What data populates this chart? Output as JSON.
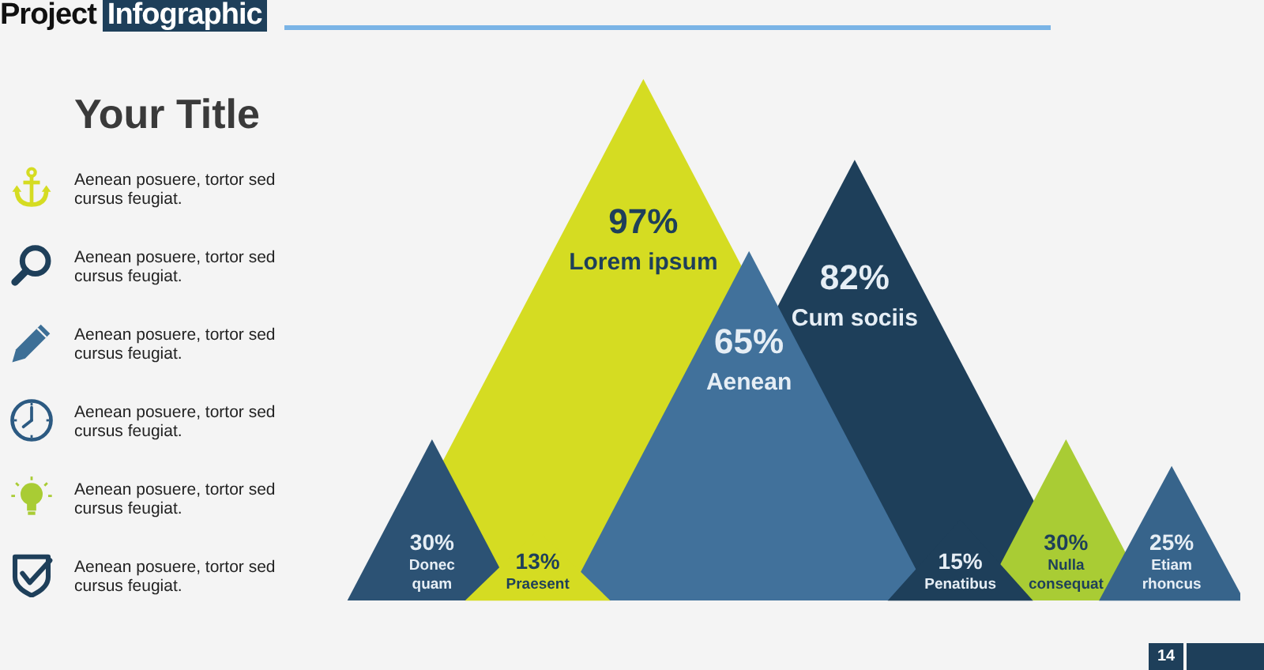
{
  "chart_data": [
    {
      "type": "other",
      "title": "Project Infographic",
      "subtitle": "Your Title",
      "annotations": [
        "Aenean posuere, tortor sed cursus feugiat.",
        "Aenean posuere, tortor sed cursus feugiat.",
        "Aenean posuere, tortor sed cursus feugiat.",
        "Aenean posuere, tortor sed cursus feugiat.",
        "Aenean posuere, tortor sed cursus feugiat.",
        "Aenean posuere, tortor sed cursus feugiat."
      ]
    },
    {
      "type": "other",
      "categories": [
        "Donec quam",
        "Praesent",
        "Lorem ipsum",
        "Aenean",
        "Cum sociis",
        "Penatibus",
        "Nulla consequat",
        "Etiam rhoncus"
      ],
      "values": [
        30,
        13,
        97,
        65,
        82,
        15,
        30,
        25
      ],
      "colors": [
        "#2c5274",
        "#d5dc22",
        "#d5dc22",
        "#41719b",
        "#1e3f5a",
        "#1e3f5a",
        "#a9cc34",
        "#37648b"
      ],
      "value_labels": [
        "30%",
        "13%",
        "97%",
        "65%",
        "82%",
        "15%",
        "30%",
        "25%"
      ],
      "annotations": [
        "14"
      ]
    }
  ]
}
